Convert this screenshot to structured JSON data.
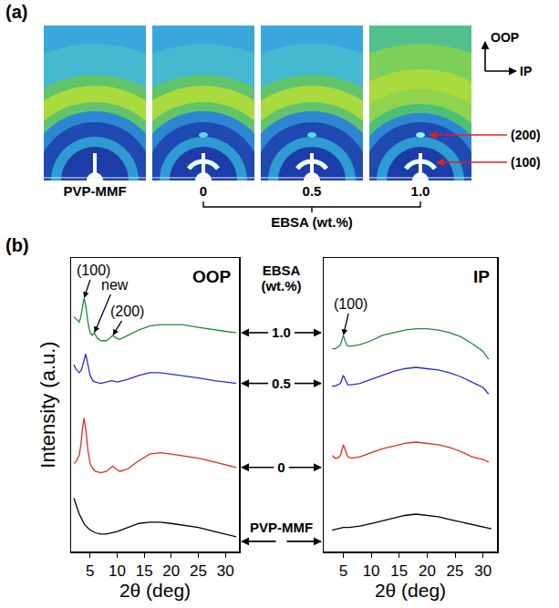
{
  "images": {
    "label": "(a)",
    "orientation": {
      "vertical": "OOP",
      "horizontal": "IP"
    },
    "samples": [
      "PVP-MMF",
      "0",
      "0.5",
      "1.0"
    ],
    "group_label": "EBSA (wt.%)",
    "peak_labels": [
      "(200)",
      "(100)"
    ]
  },
  "plots_label": "(b)",
  "series_label": "EBSA (wt.%)",
  "chart_data": [
    {
      "type": "line",
      "title": "OOP",
      "xlabel": "2θ (deg)",
      "ylabel": "Intensity (a.u.)",
      "xlim": [
        1.5,
        32.5
      ],
      "xticks": [
        5,
        10,
        15,
        20,
        25,
        30
      ],
      "ylim": [
        0,
        110
      ],
      "tick_labels": "x",
      "series": [
        {
          "name": "PVP-MMF",
          "color": "#000000",
          "x": [
            2,
            2.5,
            3,
            3.5,
            4,
            5,
            6,
            7,
            8,
            10,
            12,
            14,
            16,
            18,
            20,
            22,
            25,
            28,
            30,
            32
          ],
          "values": [
            20,
            17,
            14,
            12,
            10,
            8,
            7,
            6.5,
            6.5,
            7.5,
            9,
            10.5,
            11,
            11,
            10.5,
            10,
            9,
            7.5,
            6.5,
            5.5
          ]
        },
        {
          "name": "0",
          "color": "#e8281e",
          "x": [
            2,
            2.5,
            3,
            3.3,
            3.6,
            3.9,
            4.2,
            4.6,
            5,
            5.5,
            6,
            7,
            8,
            8.7,
            9.2,
            9.7,
            10.5,
            12,
            14,
            16,
            18,
            20,
            22,
            25,
            28,
            30,
            32
          ],
          "values": [
            33,
            34,
            36,
            40,
            46,
            50,
            46,
            38,
            33,
            31,
            30,
            29.5,
            30,
            31,
            32,
            31,
            30,
            31,
            34,
            36.5,
            37,
            36.5,
            36,
            35,
            33.5,
            32.5,
            31.5
          ]
        },
        {
          "name": "0.5",
          "color": "#2032c8",
          "x": [
            2,
            2.5,
            3,
            3.4,
            3.8,
            4.2,
            4.6,
            5,
            5.5,
            6,
            7,
            8,
            9,
            10,
            12,
            14,
            16,
            18,
            20,
            22,
            25,
            28,
            30,
            32
          ],
          "values": [
            70,
            68,
            67,
            68,
            71,
            74,
            70,
            66,
            64,
            63.5,
            63,
            63.5,
            64,
            63.5,
            64.5,
            66,
            67,
            67,
            66.5,
            66,
            65,
            64,
            63.5,
            63
          ]
        },
        {
          "name": "1.0",
          "color": "#1e8c32",
          "x": [
            2,
            2.5,
            3,
            3.3,
            3.6,
            3.9,
            4.2,
            4.6,
            5,
            5.4,
            5.8,
            6.3,
            7,
            8,
            8.7,
            9.2,
            9.8,
            10.5,
            12,
            14,
            16,
            18,
            20,
            22,
            25,
            28,
            30,
            32
          ],
          "values": [
            88,
            87,
            86,
            88,
            92,
            95,
            92,
            86,
            82,
            81,
            82,
            80,
            79,
            79,
            80,
            81,
            80,
            79.5,
            81,
            83,
            84.5,
            85,
            85,
            85,
            84,
            83,
            82.5,
            82
          ]
        }
      ],
      "annotations": [
        {
          "text": "(100)",
          "x": 3.9,
          "y": 95
        },
        {
          "text": "new",
          "x": 5.8,
          "y": 82
        },
        {
          "text": "(200)",
          "x": 9.2,
          "y": 81
        }
      ]
    },
    {
      "type": "line",
      "title": "IP",
      "xlabel": "2θ (deg)",
      "xlim": [
        1.5,
        32.5
      ],
      "xticks": [
        5,
        10,
        15,
        20,
        25,
        30
      ],
      "ylim": [
        0,
        110
      ],
      "tick_labels": "x",
      "series": [
        {
          "name": "PVP-MMF",
          "color": "#000000",
          "x": [
            3,
            4,
            5,
            6,
            8,
            10,
            12,
            14,
            16,
            18,
            20,
            22,
            24,
            26,
            28,
            30,
            31.5
          ],
          "values": [
            8,
            8.5,
            9,
            9,
            9.5,
            10.5,
            11.5,
            12.5,
            13.5,
            14,
            13.5,
            13,
            12,
            11,
            10,
            9,
            8.5
          ]
        },
        {
          "name": "0",
          "color": "#e8281e",
          "x": [
            3,
            3.5,
            4,
            4.5,
            5,
            5.4,
            5.8,
            6.5,
            8,
            10,
            12,
            14,
            16,
            18,
            20,
            22,
            24,
            26,
            28,
            30,
            31
          ],
          "values": [
            36,
            35,
            35,
            36,
            40,
            38,
            35.5,
            35,
            35.5,
            37,
            38.5,
            39.5,
            40.5,
            41,
            40.5,
            40,
            39,
            37.5,
            35.5,
            34.5,
            33.5
          ]
        },
        {
          "name": "0.5",
          "color": "#2032c8",
          "x": [
            3,
            3.5,
            4,
            4.5,
            5,
            5.4,
            5.8,
            6.5,
            8,
            10,
            12,
            14,
            16,
            18,
            20,
            22,
            24,
            26,
            28,
            30,
            31
          ],
          "values": [
            62,
            62,
            62.5,
            63,
            66,
            64,
            62.5,
            62.5,
            63,
            64.5,
            66,
            67.5,
            68.5,
            69,
            68.5,
            68,
            67,
            65.5,
            63.5,
            61.5,
            59
          ]
        },
        {
          "name": "1.0",
          "color": "#1e8c32",
          "x": [
            3,
            3.5,
            4,
            4.5,
            5,
            5.4,
            5.8,
            6.5,
            8,
            10,
            12,
            14,
            16,
            18,
            20,
            22,
            24,
            26,
            28,
            30,
            31
          ],
          "values": [
            76,
            76,
            76.5,
            77.5,
            81,
            78.5,
            77,
            77,
            77.5,
            79,
            81,
            82,
            83,
            83.5,
            83.5,
            83,
            82,
            80.5,
            78,
            75,
            72
          ]
        }
      ],
      "annotations": [
        {
          "text": "(100)",
          "x": 5,
          "y": 81
        }
      ]
    }
  ]
}
